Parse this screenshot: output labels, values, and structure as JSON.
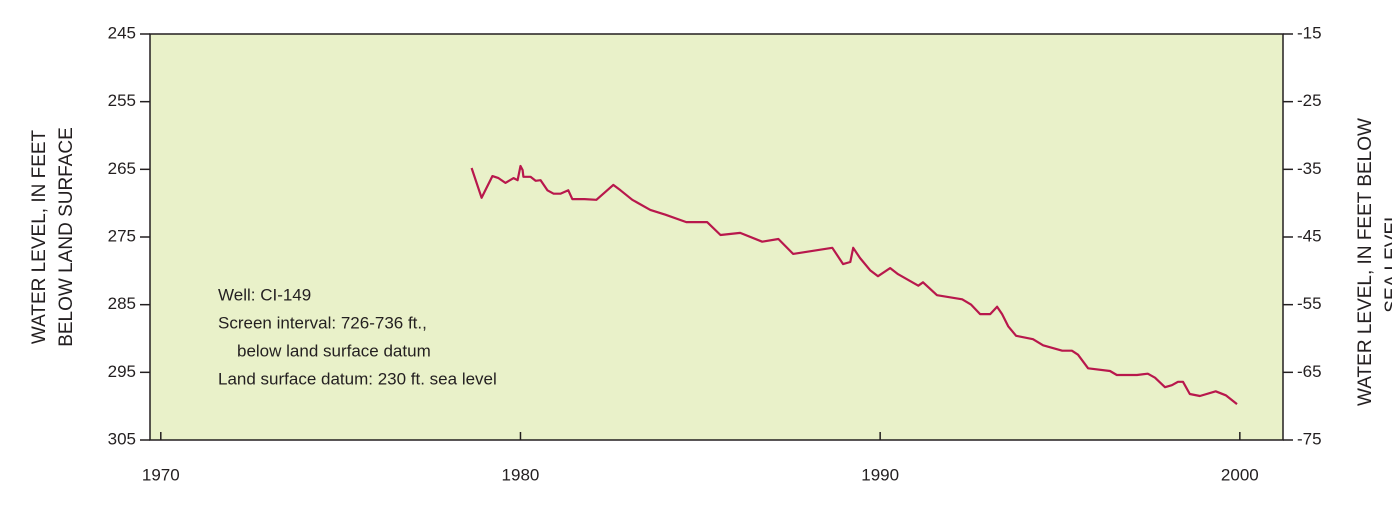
{
  "chart_data": {
    "type": "line",
    "y_label": [
      "WATER LEVEL, IN FEET",
      "BELOW LAND SURFACE"
    ],
    "y2_label": [
      "WATER LEVEL, IN FEET BELOW",
      "SEA LEVEL"
    ],
    "annotations": [
      "Well: CI-149",
      "Screen interval: 726-736 ft.,",
      "below land surface datum",
      "Land surface datum: 230 ft. sea level"
    ],
    "xlim": [
      1969.7,
      2001.2
    ],
    "xticks": [
      1970,
      1980,
      1990,
      2000
    ],
    "ylim": [
      245,
      305
    ],
    "yticks": [
      245,
      255,
      265,
      275,
      285,
      295,
      305
    ],
    "y2lim": [
      -15,
      -75
    ],
    "y2ticks": [
      -15,
      -25,
      -35,
      -45,
      -55,
      -65,
      -75
    ],
    "plot_color": "#e9f1c9",
    "series": [
      {
        "name": "Well CI-149",
        "color": "#b8184c",
        "x": [
          1978.64,
          1978.92,
          1979.22,
          1979.39,
          1979.58,
          1979.81,
          1979.92,
          1980.0,
          1980.06,
          1980.08,
          1980.28,
          1980.42,
          1980.56,
          1980.75,
          1980.92,
          1981.11,
          1981.33,
          1981.44,
          1981.78,
          1982.11,
          1982.58,
          1982.78,
          1983.11,
          1983.61,
          1984.03,
          1984.61,
          1985.19,
          1985.56,
          1986.11,
          1986.72,
          1987.17,
          1987.58,
          1988.67,
          1988.97,
          1989.17,
          1989.25,
          1989.44,
          1989.72,
          1989.94,
          1990.28,
          1990.5,
          1991.06,
          1991.19,
          1991.58,
          1992.28,
          1992.53,
          1992.78,
          1993.06,
          1993.25,
          1993.39,
          1993.56,
          1993.78,
          1994.25,
          1994.53,
          1995.06,
          1995.33,
          1995.5,
          1995.78,
          1996.39,
          1996.58,
          1997.14,
          1997.44,
          1997.64,
          1997.92,
          1998.11,
          1998.28,
          1998.42,
          1998.61,
          1998.89,
          1999.33,
          1999.61,
          1999.92
        ],
        "values": [
          264.8,
          269.2,
          266.0,
          266.3,
          267.0,
          266.3,
          266.6,
          264.5,
          265.1,
          266.1,
          266.1,
          266.7,
          266.6,
          268.1,
          268.6,
          268.6,
          268.1,
          269.4,
          269.4,
          269.5,
          267.3,
          268.1,
          269.5,
          271.0,
          271.7,
          272.8,
          272.8,
          274.7,
          274.4,
          275.7,
          275.3,
          277.5,
          276.6,
          279.0,
          278.7,
          276.6,
          278.1,
          279.9,
          280.8,
          279.6,
          280.5,
          282.2,
          281.7,
          283.6,
          284.2,
          285.0,
          286.4,
          286.4,
          285.3,
          286.4,
          288.2,
          289.6,
          290.1,
          291.0,
          291.8,
          291.8,
          292.4,
          294.4,
          294.8,
          295.4,
          295.4,
          295.2,
          295.8,
          297.2,
          296.9,
          296.4,
          296.4,
          298.2,
          298.5,
          297.8,
          298.4,
          299.7
        ]
      }
    ]
  }
}
